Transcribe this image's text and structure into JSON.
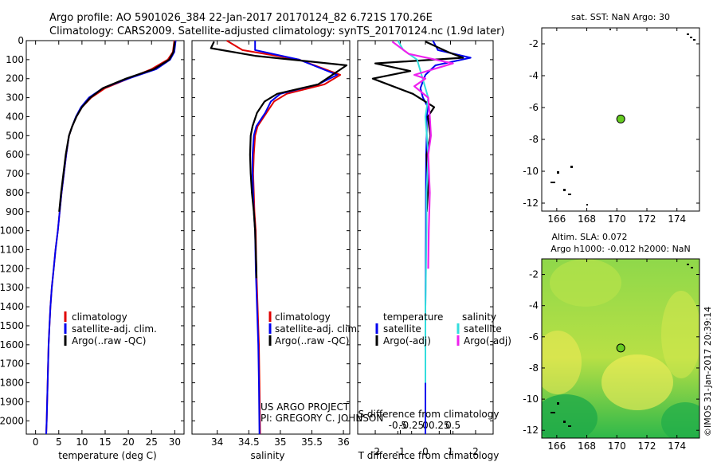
{
  "header": {
    "line1": "Argo profile: AO 5901026_384 22-Jan-2017 20170124_82 6.721S 170.26E",
    "line2": "Climatology: CARS2009. Satellite-adjusted climatology: synTS_20170124.nc (1.9d later)"
  },
  "colors": {
    "climatology": "#e00000",
    "satellite": "#0000ee",
    "argo": "#000000",
    "salinity_satellite": "#33dddd",
    "salinity_argo": "#ee22ee",
    "map_marker": "#66cc22"
  },
  "credits": {
    "project": "US ARGO PROJECT",
    "pi": "PI: GREGORY C. JOHNSON",
    "stamp": "©IMOS 31-Jan-2017 20:39:14"
  },
  "legends": {
    "panel1": [
      "climatology",
      "satellite-adj. clim.",
      "Argo(..raw -QC)"
    ],
    "panel2": [
      "climatology",
      "satellite-adj. clim.",
      "Argo(..raw -QC)"
    ],
    "panel3": {
      "temp_header": "temperature",
      "sal_header": "salinity",
      "temp_items": [
        "satellite",
        "Argo(-adj)"
      ],
      "sal_items": [
        "satellite",
        "Argo(-adj)"
      ]
    }
  },
  "chart_data": [
    {
      "type": "line",
      "name": "temperature-profile",
      "xlabel": "temperature (deg C)",
      "ylabel": "",
      "xlim": [
        -2,
        32
      ],
      "ylim": [
        2070,
        0
      ],
      "xticks": [
        0,
        5,
        10,
        15,
        20,
        25,
        30
      ],
      "xtick_labels": [
        "0",
        "5",
        "10",
        "15",
        "20",
        "25",
        "30"
      ],
      "yticks": [
        0,
        100,
        200,
        300,
        400,
        500,
        600,
        700,
        800,
        900,
        1000,
        1100,
        1200,
        1300,
        1400,
        1500,
        1600,
        1700,
        1800,
        1900,
        2000
      ],
      "ytick_labels": [
        "0",
        "100",
        "200",
        "300",
        "400",
        "500",
        "600",
        "700",
        "800",
        "900",
        "1000",
        "1100",
        "1200",
        "1300",
        "1400",
        "1500",
        "1600",
        "1700",
        "1800",
        "1900",
        "2000"
      ],
      "series": [
        {
          "name": "climatology",
          "x": [
            29.9,
            29.6,
            28.5,
            25,
            20,
            15,
            12,
            10,
            8.8,
            7.9,
            7.2,
            6.6,
            6.1,
            5.6,
            5.2,
            4.8,
            4.3,
            3.9,
            3.5,
            3.2,
            3.0,
            2.8,
            2.6,
            2.4,
            2.3
          ],
          "y": [
            0,
            60,
            100,
            150,
            200,
            250,
            300,
            350,
            400,
            450,
            500,
            600,
            700,
            800,
            900,
            1000,
            1100,
            1200,
            1300,
            1400,
            1500,
            1600,
            1800,
            2000,
            2070
          ]
        },
        {
          "name": "satellite-adj. clim.",
          "x": [
            30.2,
            29.9,
            29,
            26,
            20,
            14.5,
            11.5,
            9.8,
            8.7,
            7.9,
            7.2,
            6.6,
            6.1,
            5.6,
            5.2,
            4.8,
            4.3,
            3.9,
            3.5,
            3.2,
            3.0,
            2.8,
            2.6,
            2.4,
            2.3
          ],
          "y": [
            0,
            60,
            100,
            150,
            200,
            250,
            300,
            350,
            400,
            450,
            500,
            600,
            700,
            800,
            900,
            1000,
            1100,
            1200,
            1300,
            1400,
            1500,
            1600,
            1800,
            2000,
            2070
          ]
        },
        {
          "name": "Argo(..raw -QC)",
          "x": [
            30.0,
            29.7,
            28.8,
            25.5,
            19.5,
            14.5,
            11.8,
            10,
            8.8,
            7.9,
            7.2,
            6.5,
            6.0,
            5.5,
            5.1
          ],
          "y": [
            5,
            60,
            100,
            150,
            200,
            250,
            300,
            350,
            400,
            450,
            500,
            600,
            700,
            800,
            900
          ]
        }
      ]
    },
    {
      "type": "line",
      "name": "salinity-profile",
      "xlabel": "salinity",
      "ylabel": "",
      "xlim": [
        33.6,
        36.1
      ],
      "ylim": [
        2070,
        0
      ],
      "xticks": [
        34,
        34.5,
        35,
        35.5,
        36
      ],
      "xtick_labels": [
        "34",
        "34.5",
        "35",
        "35.5",
        "36"
      ],
      "series": [
        {
          "name": "climatology",
          "x": [
            34.15,
            34.4,
            35.3,
            35.95,
            35.7,
            35.1,
            34.9,
            34.78,
            34.64,
            34.6,
            34.58,
            34.57,
            34.58,
            34.59,
            34.61,
            34.62,
            34.64,
            34.66,
            34.67,
            34.68
          ],
          "y": [
            0,
            50,
            100,
            180,
            230,
            280,
            320,
            380,
            450,
            500,
            600,
            700,
            800,
            900,
            1000,
            1200,
            1400,
            1600,
            1800,
            2070
          ]
        },
        {
          "name": "satellite-adj. clim.",
          "x": [
            34.6,
            34.6,
            35.3,
            35.9,
            35.6,
            35.0,
            34.85,
            34.76,
            34.62,
            34.58,
            34.56,
            34.56,
            34.57,
            34.58,
            34.6,
            34.61,
            34.63,
            34.65,
            34.66,
            34.67
          ],
          "y": [
            0,
            50,
            100,
            180,
            230,
            280,
            320,
            380,
            450,
            500,
            600,
            700,
            800,
            900,
            1000,
            1200,
            1400,
            1600,
            1800,
            2070
          ]
        },
        {
          "name": "Argo(..raw -QC)",
          "x": [
            33.95,
            33.9,
            34.6,
            36.05,
            35.6,
            34.95,
            34.75,
            34.63,
            34.56,
            34.53,
            34.52,
            34.53,
            34.55,
            34.58,
            34.6,
            34.61,
            34.62,
            34.62
          ],
          "y": [
            5,
            40,
            80,
            130,
            230,
            280,
            320,
            380,
            450,
            500,
            600,
            700,
            800,
            900,
            1000,
            1100,
            1200,
            1250
          ]
        }
      ]
    },
    {
      "type": "line",
      "name": "difference-from-climatology",
      "xlabel": "T difference from climatology",
      "title_bottom": "S difference from climatology",
      "xlim": [
        -2.7,
        2.7
      ],
      "ylim": [
        2070,
        0
      ],
      "xticks": [
        -2,
        -1,
        0,
        1,
        2
      ],
      "xtick_labels": [
        "-2",
        "-1",
        "0",
        "1",
        "2"
      ],
      "sticks": [
        -0.5,
        -0.25,
        0,
        0.25,
        0.5
      ],
      "stick_labels": [
        "-0.5",
        "-0.25",
        "0",
        "0.25",
        "0.5"
      ],
      "series": [
        {
          "name": "temperature satellite",
          "x": [
            0.3,
            0.5,
            1.8,
            0.4,
            0,
            -0.2,
            -0.1,
            0.1,
            0.05,
            0.05,
            0.03,
            0.02,
            0.02,
            0.01,
            0,
            0,
            0,
            0
          ],
          "y": [
            0,
            50,
            90,
            130,
            180,
            250,
            300,
            350,
            400,
            500,
            600,
            800,
            1000,
            1200,
            1400,
            1600,
            1800,
            2070
          ]
        },
        {
          "name": "temperature Argo(-adj)",
          "x": [
            0,
            0.9,
            1.5,
            -2.0,
            -0.6,
            -2.1,
            -0.5,
            0.35,
            0.1,
            0.2,
            0.05,
            0.1,
            0.05
          ],
          "y": [
            5,
            60,
            90,
            120,
            160,
            200,
            280,
            350,
            400,
            500,
            600,
            800,
            900
          ]
        },
        {
          "name": "salinity satellite",
          "x": [
            -0.5,
            -0.4,
            -0.15,
            -0.05,
            0.05,
            0.0,
            0.05,
            0.02,
            0.02,
            0.01,
            0,
            0,
            0
          ],
          "y": [
            0,
            50,
            100,
            200,
            300,
            400,
            600,
            800,
            1000,
            1200,
            1400,
            1600,
            1800
          ]
        },
        {
          "name": "salinity Argo(-adj)",
          "x": [
            -0.6,
            -0.3,
            0.5,
            -0.2,
            0.0,
            -0.2,
            0.05,
            0.08,
            0.1,
            0.05,
            0.08,
            0.06,
            0.05
          ],
          "y": [
            5,
            70,
            120,
            180,
            200,
            240,
            300,
            400,
            500,
            600,
            800,
            1000,
            1200
          ]
        }
      ]
    },
    {
      "type": "scatter",
      "name": "sst-map",
      "title": "sat. SST: NaN Argo: 30",
      "xlim": [
        165,
        175.5
      ],
      "ylim": [
        -12.5,
        -1
      ],
      "xticks": [
        166,
        168,
        170,
        172,
        174
      ],
      "xtick_labels": [
        "166",
        "168",
        "170",
        "172",
        "174"
      ],
      "yticks": [
        -2,
        -4,
        -6,
        -8,
        -10,
        -12
      ],
      "ytick_labels": [
        "-2",
        "-4",
        "-6",
        "-8",
        "-10",
        "-12"
      ],
      "argo_position": {
        "x": 170.26,
        "y": -6.72
      }
    },
    {
      "type": "heatmap",
      "name": "sla-map",
      "title1": "Altim. SLA: 0.072",
      "title2": "Argo h1000: -0.012 h2000: NaN",
      "xlim": [
        165,
        175.5
      ],
      "ylim": [
        -12.5,
        -1
      ],
      "xticks": [
        166,
        168,
        170,
        172,
        174
      ],
      "xtick_labels": [
        "166",
        "168",
        "170",
        "172",
        "174"
      ],
      "yticks": [
        -2,
        -4,
        -6,
        -8,
        -10,
        -12
      ],
      "ytick_labels": [
        "-2",
        "-4",
        "-6",
        "-8",
        "-10",
        "-12"
      ],
      "argo_position": {
        "x": 170.26,
        "y": -6.72
      }
    }
  ]
}
